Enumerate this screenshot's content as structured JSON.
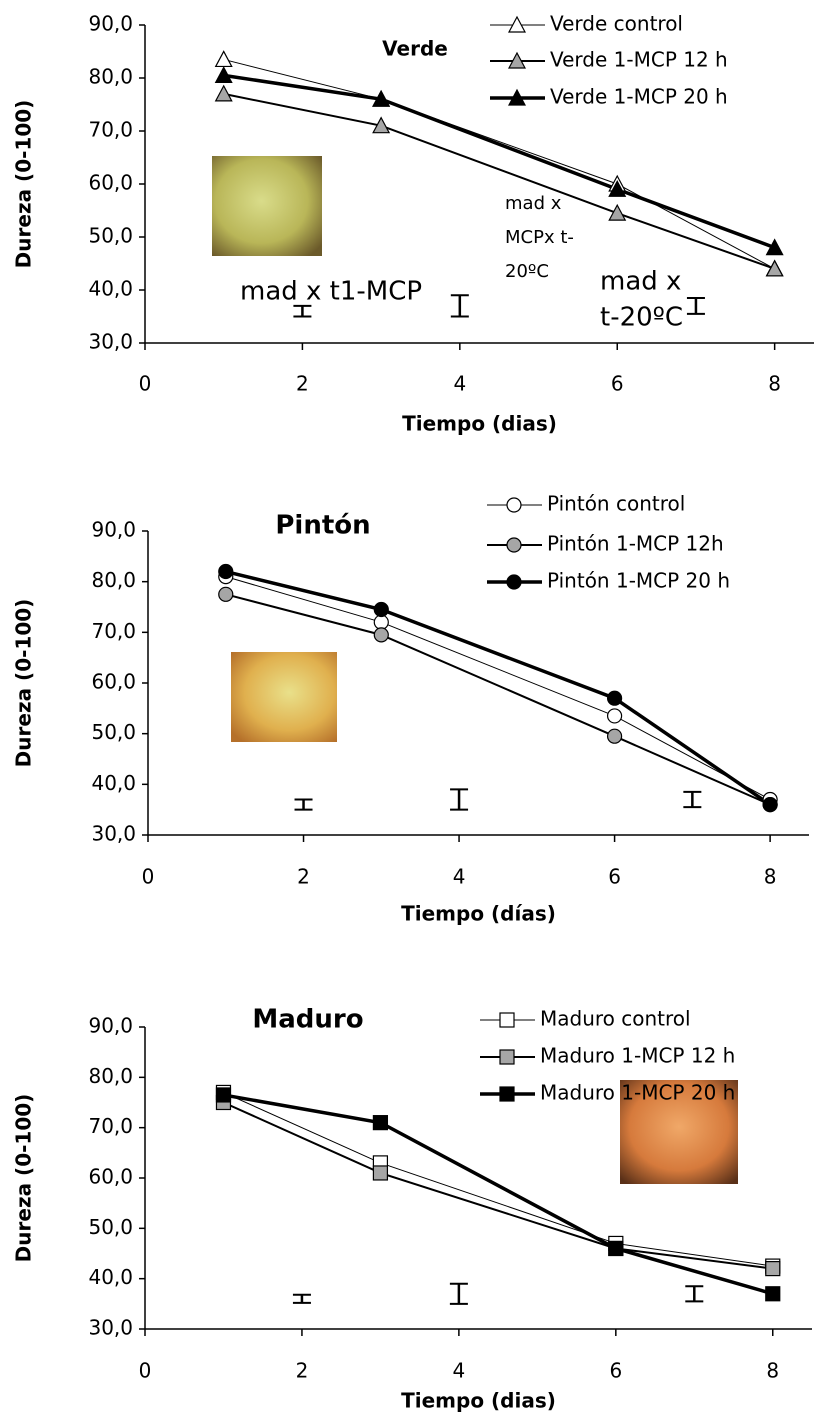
{
  "chart_data": [
    {
      "type": "line",
      "title": "Verde",
      "x_label": "Tiempo (dias)",
      "y_label": "Dureza (0-100)",
      "x": [
        1,
        3,
        6,
        8
      ],
      "xlim": [
        0,
        8.5
      ],
      "xticks": [
        0,
        2,
        4,
        6,
        8
      ],
      "ylim": [
        30,
        90
      ],
      "yticks": [
        {
          "value": 30,
          "label": "30,0"
        },
        {
          "value": 40,
          "label": "40,0"
        },
        {
          "value": 50,
          "label": "50,0"
        },
        {
          "value": 60,
          "label": "60,0"
        },
        {
          "value": 70,
          "label": "70,0"
        },
        {
          "value": 80,
          "label": "80,0"
        },
        {
          "value": 90,
          "label": "90,0"
        }
      ],
      "marker": "triangle",
      "series": [
        {
          "name": "Verde control",
          "color": "#ffffff",
          "line_width": 1,
          "values": [
            83.5,
            76,
            60,
            44
          ]
        },
        {
          "name": "Verde 1-MCP 12 h",
          "color": "#a6a6a6",
          "line_width": 2,
          "values": [
            77,
            71,
            54.5,
            44
          ]
        },
        {
          "name": "Verde 1-MCP 20 h",
          "color": "#000000",
          "line_width": 3.5,
          "values": [
            80.5,
            76,
            59,
            48
          ]
        }
      ],
      "error_bars": {
        "x": [
          2,
          4,
          7
        ],
        "values": [
          36,
          37,
          37
        ],
        "errors": [
          1,
          2,
          1.5
        ]
      },
      "annotations": [
        {
          "lines": [
            "mad x t1-MCP"
          ]
        },
        {
          "lines": [
            "mad x",
            "MCPx t-",
            "20ºC"
          ]
        },
        {
          "lines": [
            "mad x",
            "t-20ºC"
          ]
        }
      ]
    },
    {
      "type": "line",
      "title": "Pintón",
      "x_label": "Tiempo (días)",
      "y_label": "Dureza (0-100)",
      "x": [
        1,
        3,
        6,
        8
      ],
      "xlim": [
        0,
        8.5
      ],
      "xticks": [
        0,
        2,
        4,
        6,
        8
      ],
      "ylim": [
        30,
        90
      ],
      "yticks": [
        {
          "value": 30,
          "label": "30,0"
        },
        {
          "value": 40,
          "label": "40,0"
        },
        {
          "value": 50,
          "label": "50,0"
        },
        {
          "value": 60,
          "label": "60,0"
        },
        {
          "value": 70,
          "label": "70,0"
        },
        {
          "value": 80,
          "label": "80,0"
        },
        {
          "value": 90,
          "label": "90,0"
        }
      ],
      "marker": "circle",
      "series": [
        {
          "name": "Pintón control",
          "color": "#ffffff",
          "line_width": 1,
          "values": [
            81,
            72,
            53.5,
            37
          ]
        },
        {
          "name": "Pintón 1-MCP 12h",
          "color": "#a6a6a6",
          "line_width": 2,
          "values": [
            77.5,
            69.5,
            49.5,
            36
          ]
        },
        {
          "name": "Pintón 1-MCP 20 h",
          "color": "#000000",
          "line_width": 3.5,
          "values": [
            82,
            74.5,
            57,
            36
          ]
        }
      ],
      "error_bars": {
        "x": [
          2,
          4,
          7
        ],
        "values": [
          36,
          37,
          37
        ],
        "errors": [
          1,
          2,
          1.5
        ]
      }
    },
    {
      "type": "line",
      "title": "Maduro",
      "x_label": "Tiempo (dias)",
      "y_label": "Dureza (0-100)",
      "x": [
        1,
        3,
        6,
        8
      ],
      "xlim": [
        0,
        8.5
      ],
      "xticks": [
        0,
        2,
        4,
        6,
        8
      ],
      "ylim": [
        30,
        90
      ],
      "yticks": [
        {
          "value": 30,
          "label": "30,0"
        },
        {
          "value": 40,
          "label": "40,0"
        },
        {
          "value": 50,
          "label": "50,0"
        },
        {
          "value": 60,
          "label": "60,0"
        },
        {
          "value": 70,
          "label": "70,0"
        },
        {
          "value": 80,
          "label": "80,0"
        },
        {
          "value": 90,
          "label": "90,0"
        }
      ],
      "marker": "square",
      "series": [
        {
          "name": "Maduro control",
          "color": "#ffffff",
          "line_width": 1,
          "values": [
            77,
            63,
            47,
            42.5
          ]
        },
        {
          "name": "Maduro 1-MCP 12 h",
          "color": "#a6a6a6",
          "line_width": 2,
          "values": [
            75,
            61,
            46,
            42
          ]
        },
        {
          "name": "Maduro 1-MCP 20 h",
          "color": "#000000",
          "line_width": 3.5,
          "values": [
            76.5,
            71,
            46,
            37
          ]
        }
      ],
      "error_bars": {
        "x": [
          2,
          4,
          7
        ],
        "values": [
          36,
          37,
          37
        ],
        "errors": [
          0.8,
          2,
          1.5
        ]
      }
    }
  ]
}
